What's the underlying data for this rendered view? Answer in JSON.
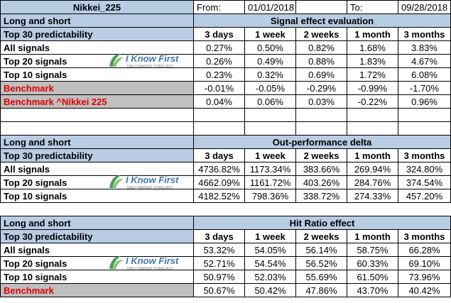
{
  "header": {
    "title": "Nikkei_225",
    "from_label": "From:",
    "from_date": "01/01/2018",
    "to_label": "To:",
    "to_date": "09/28/2018"
  },
  "columns": [
    "3 days",
    "1 week",
    "2 weeks",
    "1 month",
    "3 months"
  ],
  "logo": {
    "brand": "I Know First",
    "tagline": "DAILY MARKET FORECAST"
  },
  "sections": [
    {
      "label": "Long and short",
      "title": "Signal effect evaluation",
      "sub_label": "Top 30 predictability",
      "rows": [
        {
          "label": "All signals",
          "red": false,
          "values": [
            "0.27%",
            "0.50%",
            "0.82%",
            "1.68%",
            "3.83%"
          ]
        },
        {
          "label": "Top 20 signals",
          "red": false,
          "values": [
            "0.26%",
            "0.49%",
            "0.88%",
            "1.83%",
            "4.67%"
          ]
        },
        {
          "label": "Top 10 signals",
          "red": false,
          "values": [
            "0.23%",
            "0.32%",
            "0.69%",
            "1.72%",
            "6.08%"
          ]
        },
        {
          "label": "Benchmark",
          "red": true,
          "values": [
            "-0.01%",
            "-0.05%",
            "-0.29%",
            "-0.99%",
            "-1.70%"
          ]
        },
        {
          "label": "Benchmark ^Nikkei 225",
          "red": true,
          "values": [
            "0.04%",
            "0.06%",
            "0.03%",
            "-0.22%",
            "0.96%"
          ]
        }
      ]
    },
    {
      "label": "Long and short",
      "title": "Out-performance delta",
      "sub_label": "Top 30 predictability",
      "rows": [
        {
          "label": "All signals",
          "red": false,
          "values": [
            "4736.82%",
            "1173.34%",
            "383.66%",
            "269.94%",
            "324.80%"
          ]
        },
        {
          "label": "Top 20 signals",
          "red": false,
          "values": [
            "4662.09%",
            "1161.72%",
            "403.26%",
            "284.76%",
            "374.54%"
          ]
        },
        {
          "label": "Top 10 signals",
          "red": false,
          "values": [
            "4182.52%",
            "798.36%",
            "338.72%",
            "274.33%",
            "457.20%"
          ]
        }
      ]
    },
    {
      "label": "Long and short",
      "title": "Hit Ratio effect",
      "sub_label": "Top 30 predictability",
      "rows": [
        {
          "label": "All signals",
          "red": false,
          "values": [
            "53.32%",
            "54.05%",
            "56.14%",
            "58.75%",
            "66.28%"
          ]
        },
        {
          "label": "Top 20 signals",
          "red": false,
          "values": [
            "52.71%",
            "54.54%",
            "56.52%",
            "60.33%",
            "69.10%"
          ]
        },
        {
          "label": "Top 10 signals",
          "red": false,
          "values": [
            "50.97%",
            "52.03%",
            "55.69%",
            "61.50%",
            "73.96%"
          ]
        },
        {
          "label": "Benchmark",
          "red": true,
          "values": [
            "50.67%",
            "50.42%",
            "47.86%",
            "43.70%",
            "40.42%"
          ]
        }
      ]
    }
  ]
}
